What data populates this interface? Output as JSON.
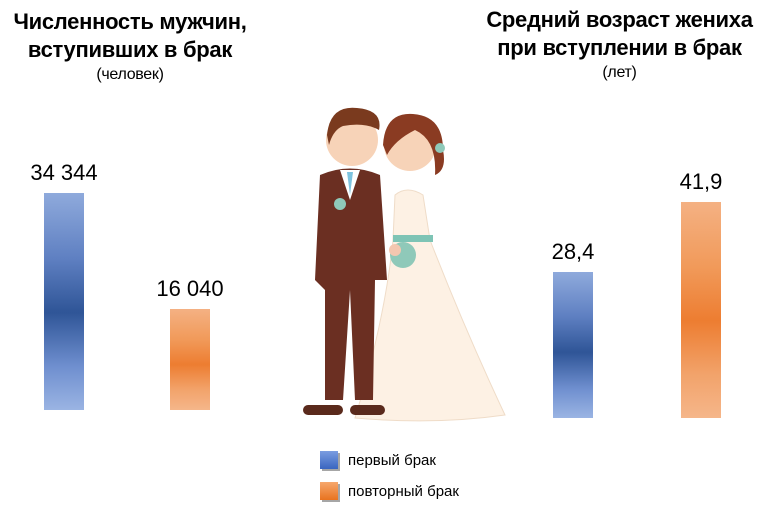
{
  "chart_data": [
    {
      "type": "bar",
      "title": "Численность мужчин, вступивших в брак",
      "subtitle": "(человек)",
      "categories": [
        "первый брак",
        "повторный брак"
      ],
      "values": [
        34344,
        16040
      ],
      "value_labels": [
        "34 344",
        "16 040"
      ],
      "colors": [
        "#2f5597",
        "#ed7d31"
      ]
    },
    {
      "type": "bar",
      "title": "Средний возраст жениха при вступлении в брак",
      "subtitle": "(лет)",
      "categories": [
        "первый брак",
        "повторный брак"
      ],
      "values": [
        28.4,
        41.9
      ],
      "value_labels": [
        "28,4",
        "41,9"
      ],
      "colors": [
        "#2f5597",
        "#ed7d31"
      ]
    }
  ],
  "left": {
    "title_line1": "Численность мужчин,",
    "title_line2": "вступивших в брак",
    "subtitle": "(человек)"
  },
  "right": {
    "title_line1": "Средний возраст жениха",
    "title_line2": "при вступлении в брак",
    "subtitle": "(лет)"
  },
  "legend": [
    {
      "label": "первый брак",
      "color": "#4472c4"
    },
    {
      "label": "повторный брак",
      "color": "#ed7d31"
    }
  ],
  "illustration": "bride-and-groom"
}
